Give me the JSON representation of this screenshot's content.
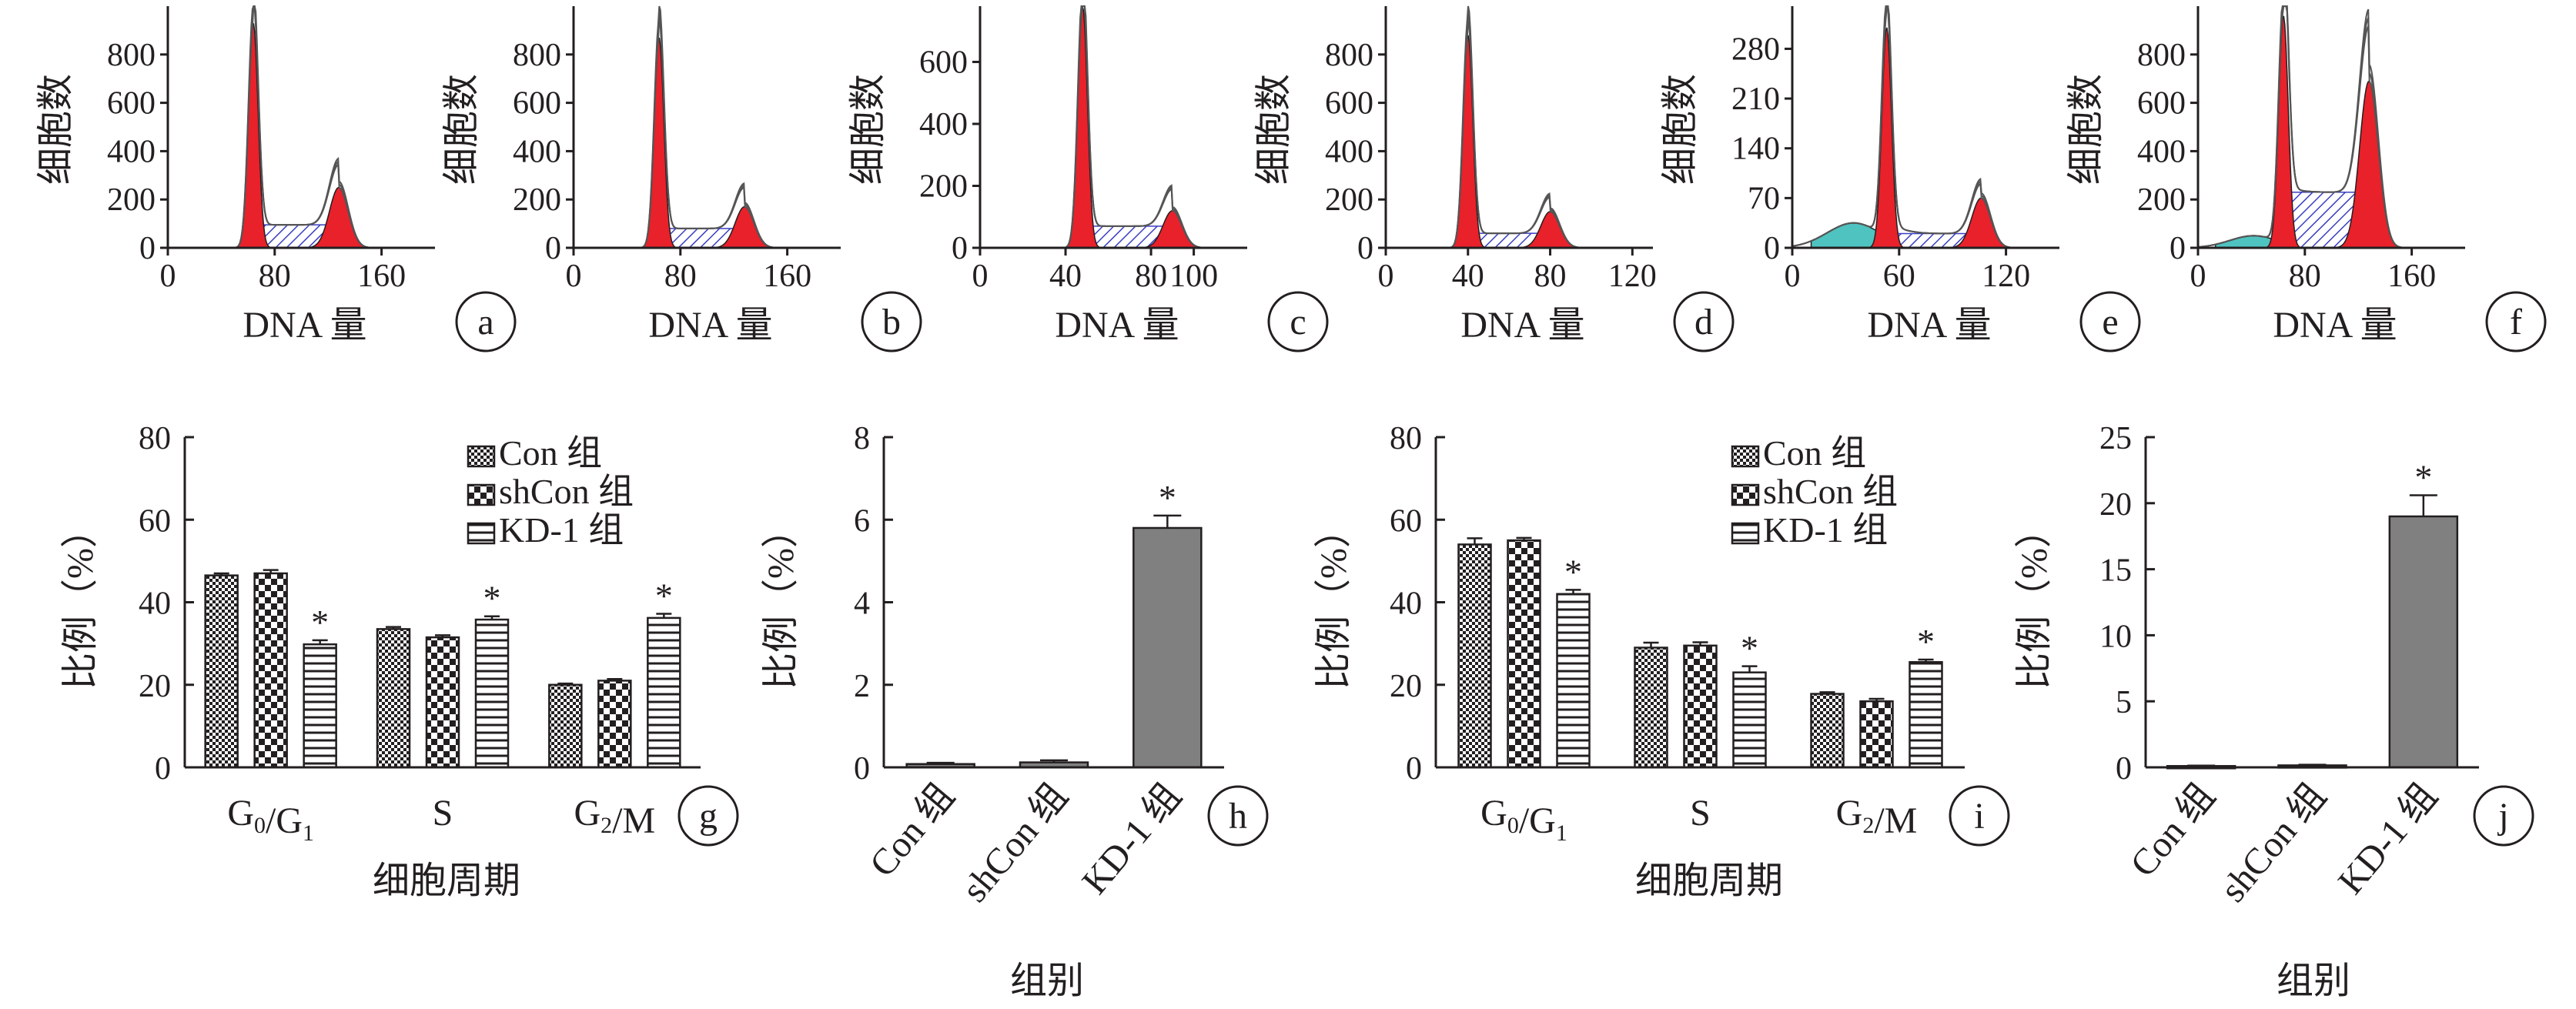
{
  "colors": {
    "ink": "#231f20",
    "peak": "#e8212b",
    "s_phase_hatch": "#3a3ec0",
    "apoptotic": "#4fc3c0",
    "bar_solid": "#808080",
    "trace": "#555555"
  },
  "panels": {
    "a": {
      "label": "a",
      "xlabel": "DNA 量",
      "ylabel": "细胞数"
    },
    "b": {
      "label": "b",
      "xlabel": "DNA 量",
      "ylabel": "细胞数"
    },
    "c": {
      "label": "c",
      "xlabel": "DNA 量",
      "ylabel": "细胞数"
    },
    "d": {
      "label": "d",
      "xlabel": "DNA 量",
      "ylabel": "细胞数"
    },
    "e": {
      "label": "e",
      "xlabel": "DNA 量",
      "ylabel": "细胞数"
    },
    "f": {
      "label": "f",
      "xlabel": "DNA 量",
      "ylabel": "细胞数"
    },
    "g": {
      "label": "g",
      "xlabel": "细胞周期",
      "ylabel": "比例（%）"
    },
    "h": {
      "label": "h",
      "xlabel": "组别",
      "ylabel": "比例（%）"
    },
    "i": {
      "label": "i",
      "xlabel": "细胞周期",
      "ylabel": "比例（%）"
    },
    "j": {
      "label": "j",
      "xlabel": "组别",
      "ylabel": "比例（%）"
    }
  },
  "chart_data": [
    {
      "id": "a",
      "type": "area",
      "xlabel": "DNA 量",
      "ylabel": "细胞数",
      "xlim": [
        0,
        200
      ],
      "ylim": [
        0,
        1000
      ],
      "xticks": [
        0,
        80,
        160
      ],
      "yticks": [
        0,
        200,
        400,
        600,
        800
      ],
      "peaks": {
        "g1_pos": 64,
        "g1_height": 930,
        "g2_pos": 128,
        "g2_height": 250,
        "s_level": 95,
        "apoptotic_height": 0
      }
    },
    {
      "id": "b",
      "type": "area",
      "xlabel": "DNA 量",
      "ylabel": "细胞数",
      "xlim": [
        0,
        200
      ],
      "ylim": [
        0,
        1000
      ],
      "xticks": [
        0,
        80,
        160
      ],
      "yticks": [
        0,
        200,
        400,
        600,
        800
      ],
      "peaks": {
        "g1_pos": 64,
        "g1_height": 870,
        "g2_pos": 128,
        "g2_height": 170,
        "s_level": 80,
        "apoptotic_height": 0
      }
    },
    {
      "id": "c",
      "type": "area",
      "xlabel": "DNA 量",
      "ylabel": "细胞数",
      "xlim": [
        0,
        125
      ],
      "ylim": [
        0,
        780
      ],
      "xticks": [
        0,
        40,
        80,
        100
      ],
      "yticks": [
        0,
        200,
        400,
        600
      ],
      "peaks": {
        "g1_pos": 48,
        "g1_height": 780,
        "g2_pos": 90,
        "g2_height": 120,
        "s_level": 70,
        "apoptotic_height": 0
      }
    },
    {
      "id": "d",
      "type": "area",
      "xlabel": "DNA 量",
      "ylabel": "细胞数",
      "xlim": [
        0,
        130
      ],
      "ylim": [
        0,
        1000
      ],
      "xticks": [
        0,
        40,
        80,
        120
      ],
      "yticks": [
        0,
        200,
        400,
        600,
        800
      ],
      "peaks": {
        "g1_pos": 40,
        "g1_height": 880,
        "g2_pos": 80,
        "g2_height": 150,
        "s_level": 60,
        "apoptotic_height": 0
      }
    },
    {
      "id": "e",
      "type": "area",
      "xlabel": "DNA 量",
      "ylabel": "细胞数",
      "xlim": [
        0,
        150
      ],
      "ylim": [
        0,
        340
      ],
      "xticks": [
        0,
        60,
        120
      ],
      "yticks": [
        0,
        70,
        140,
        210,
        280
      ],
      "peaks": {
        "g1_pos": 53,
        "g1_height": 310,
        "g2_pos": 106,
        "g2_height": 70,
        "s_level": 20,
        "apoptotic_height": 35
      }
    },
    {
      "id": "f",
      "type": "area",
      "xlabel": "DNA 量",
      "ylabel": "细胞数",
      "xlim": [
        0,
        200
      ],
      "ylim": [
        0,
        1000
      ],
      "xticks": [
        0,
        80,
        160
      ],
      "yticks": [
        0,
        200,
        400,
        600,
        800
      ],
      "peaks": {
        "g1_pos": 64,
        "g1_height": 960,
        "g2_pos": 128,
        "g2_height": 690,
        "s_level": 230,
        "apoptotic_height": 50
      }
    },
    {
      "id": "g",
      "type": "bar",
      "xlabel": "细胞周期",
      "ylabel": "比例（%）",
      "ylim": [
        0,
        80
      ],
      "yticks": [
        0,
        20,
        40,
        60,
        80
      ],
      "categories": [
        "G0/G1",
        "S",
        "G2/M"
      ],
      "series": [
        {
          "name": "Con 组",
          "values": [
            46.5,
            33.5,
            20.0
          ],
          "errors": [
            0.5,
            0.5,
            0.3
          ],
          "stars": [
            false,
            false,
            false
          ]
        },
        {
          "name": "shCon 组",
          "values": [
            47.0,
            31.5,
            21.0
          ],
          "errors": [
            0.8,
            0.5,
            0.4
          ],
          "stars": [
            false,
            false,
            false
          ]
        },
        {
          "name": "KD-1 组",
          "values": [
            29.8,
            35.8,
            36.2
          ],
          "errors": [
            1.0,
            0.8,
            1.0
          ],
          "stars": [
            true,
            true,
            true
          ]
        }
      ]
    },
    {
      "id": "h",
      "type": "bar",
      "xlabel": "组别",
      "ylabel": "比例（%）",
      "ylim": [
        0,
        8
      ],
      "yticks": [
        0,
        2,
        4,
        6,
        8
      ],
      "categories": [
        "Con 组",
        "shCon 组",
        "KD-1 组"
      ],
      "values": [
        0.08,
        0.12,
        5.8
      ],
      "errors": [
        0.03,
        0.05,
        0.3
      ],
      "stars": [
        false,
        false,
        true
      ]
    },
    {
      "id": "i",
      "type": "bar",
      "xlabel": "细胞周期",
      "ylabel": "比例（%）",
      "ylim": [
        0,
        80
      ],
      "yticks": [
        0,
        20,
        40,
        60,
        80
      ],
      "categories": [
        "G0/G1",
        "S",
        "G2/M"
      ],
      "series": [
        {
          "name": "Con 组",
          "values": [
            54.0,
            29.0,
            17.8
          ],
          "errors": [
            1.5,
            1.2,
            0.4
          ],
          "stars": [
            false,
            false,
            false
          ]
        },
        {
          "name": "shCon 组",
          "values": [
            55.0,
            29.5,
            16.0
          ],
          "errors": [
            0.6,
            0.8,
            0.6
          ],
          "stars": [
            false,
            false,
            false
          ]
        },
        {
          "name": "KD-1 组",
          "values": [
            42.0,
            23.0,
            25.5
          ],
          "errors": [
            1.0,
            1.5,
            0.6
          ],
          "stars": [
            true,
            true,
            true
          ]
        }
      ]
    },
    {
      "id": "j",
      "type": "bar",
      "xlabel": "组别",
      "ylabel": "比例（%）",
      "ylim": [
        0,
        25
      ],
      "yticks": [
        0,
        5,
        10,
        15,
        20,
        25
      ],
      "categories": [
        "Con 组",
        "shCon 组",
        "KD-1 组"
      ],
      "values": [
        0.1,
        0.15,
        19.0
      ],
      "errors": [
        0.03,
        0.05,
        1.6
      ],
      "stars": [
        false,
        false,
        true
      ]
    }
  ]
}
